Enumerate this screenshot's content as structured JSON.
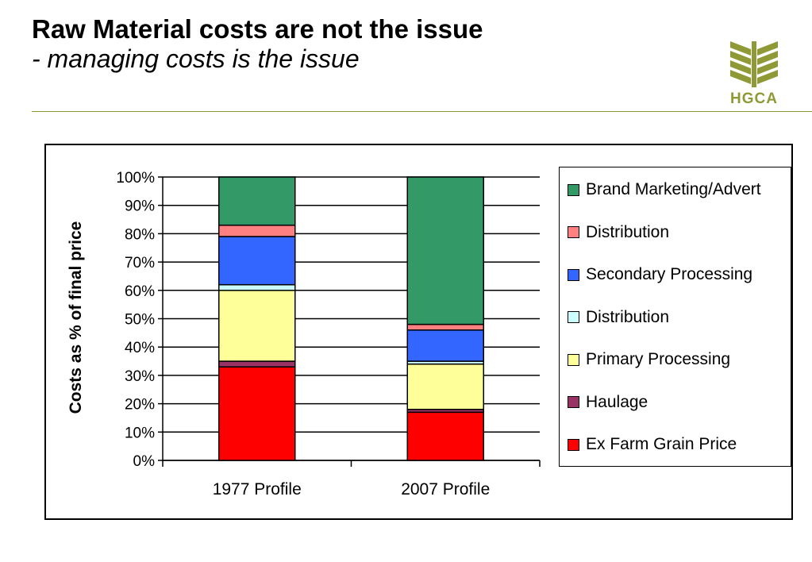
{
  "header": {
    "title": "Raw Material costs are not the issue",
    "subtitle": "- managing costs is the issue"
  },
  "logo": {
    "text": "HGCA",
    "color": "#8f9a37"
  },
  "chart_data": {
    "type": "bar",
    "stacked": true,
    "categories": [
      "1977 Profile",
      "2007 Profile"
    ],
    "ylabel": "Costs as % of final price",
    "xlabel": "",
    "ylim": [
      0,
      100
    ],
    "yticks": [
      "0%",
      "10%",
      "20%",
      "30%",
      "40%",
      "50%",
      "60%",
      "70%",
      "80%",
      "90%",
      "100%"
    ],
    "grid": true,
    "legend_position": "right",
    "series": [
      {
        "name": "Ex Farm Grain Price",
        "color": "#ff0000",
        "values": [
          33,
          17
        ]
      },
      {
        "name": "Haulage",
        "color": "#993366",
        "values": [
          2,
          1
        ]
      },
      {
        "name": "Primary Processing",
        "color": "#ffff99",
        "values": [
          25,
          16
        ]
      },
      {
        "name": "Distribution",
        "color": "#ccffff",
        "values": [
          2,
          1
        ]
      },
      {
        "name": "Secondary Processing",
        "color": "#3366ff",
        "values": [
          17,
          11
        ]
      },
      {
        "name": "Distribution",
        "color": "#ff8080",
        "values": [
          4,
          2
        ]
      },
      {
        "name": "Brand Marketing/Advert",
        "color": "#339966",
        "values": [
          17,
          52
        ]
      }
    ]
  }
}
